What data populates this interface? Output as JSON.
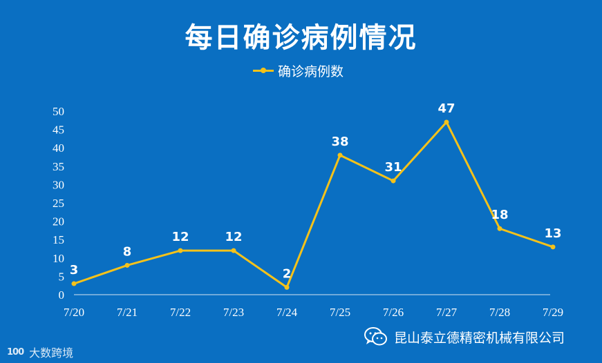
{
  "title": "每日确诊病例情况",
  "legend_label": "确诊病例数",
  "colors": {
    "background": "#0a6fc2",
    "series": "#f5c21a",
    "text": "#ffffff"
  },
  "watermark": {
    "logo": "100",
    "text": "大数跨境"
  },
  "company": {
    "name": "昆山泰立德精密机械有限公司",
    "icon": "wechat-icon"
  },
  "chart_data": {
    "type": "line",
    "categories": [
      "7/20",
      "7/21",
      "7/22",
      "7/23",
      "7/24",
      "7/25",
      "7/26",
      "7/27",
      "7/28",
      "7/29"
    ],
    "series": [
      {
        "name": "确诊病例数",
        "values": [
          3,
          8,
          12,
          12,
          2,
          38,
          31,
          47,
          18,
          13
        ]
      }
    ],
    "title": "每日确诊病例情况",
    "xlabel": "",
    "ylabel": "",
    "ylim": [
      0,
      50
    ],
    "yticks": [
      0,
      5,
      10,
      15,
      20,
      25,
      30,
      35,
      40,
      45,
      50
    ],
    "grid": false,
    "legend_position": "top-center",
    "data_labels": true
  }
}
